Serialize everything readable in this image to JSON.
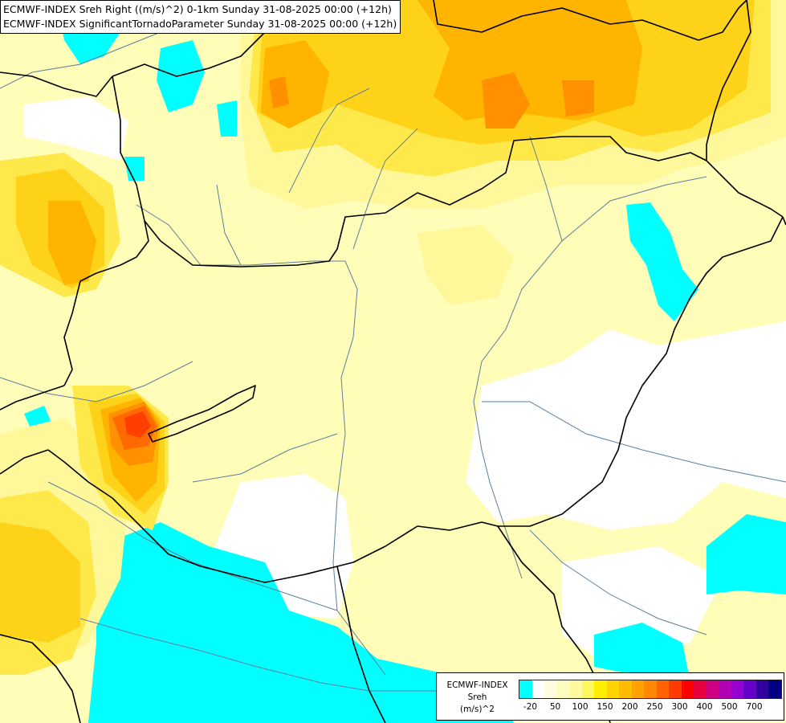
{
  "header": {
    "title_line_1": "ECMWF-INDEX Sreh Right ((m/s)^2) 0-1km Sunday 31-08-2025 00:00 (+12h)",
    "title_line_2": "ECMWF-INDEX SignificantTornadoParameter Sunday 31-08-2025 00:00 (+12h)"
  },
  "legend": {
    "title_line_1": "ECMWF-INDEX",
    "title_line_2": "Sreh",
    "title_line_3": "(m/s)^2",
    "tick_labels": [
      "-20",
      "50",
      "100",
      "150",
      "200",
      "250",
      "300",
      "400",
      "500",
      "700"
    ],
    "colors": [
      "#00ffff",
      "#ffffff",
      "#fffde0",
      "#fffcc0",
      "#fffaa0",
      "#fff660",
      "#ffee00",
      "#ffd400",
      "#ffbb00",
      "#ffa200",
      "#ff8800",
      "#ff6400",
      "#ff3c00",
      "#ff0000",
      "#e60040",
      "#cc0080",
      "#b400b4",
      "#9600d2",
      "#6400c8",
      "#3200a0",
      "#000080"
    ]
  },
  "map_colors": {
    "background": "#fffdb8",
    "cyan": "#00ffff",
    "white": "#ffffff",
    "pale_yellow": "#fffdb8",
    "light_yellow": "#fff89a",
    "yellow": "#ffe94a",
    "gold": "#ffd21a",
    "orange": "#ffb400",
    "dark_orange": "#ff9000",
    "red_orange": "#ff6a00",
    "red": "#ff3e00",
    "border": "#000000",
    "river": "#5a7fa0"
  }
}
